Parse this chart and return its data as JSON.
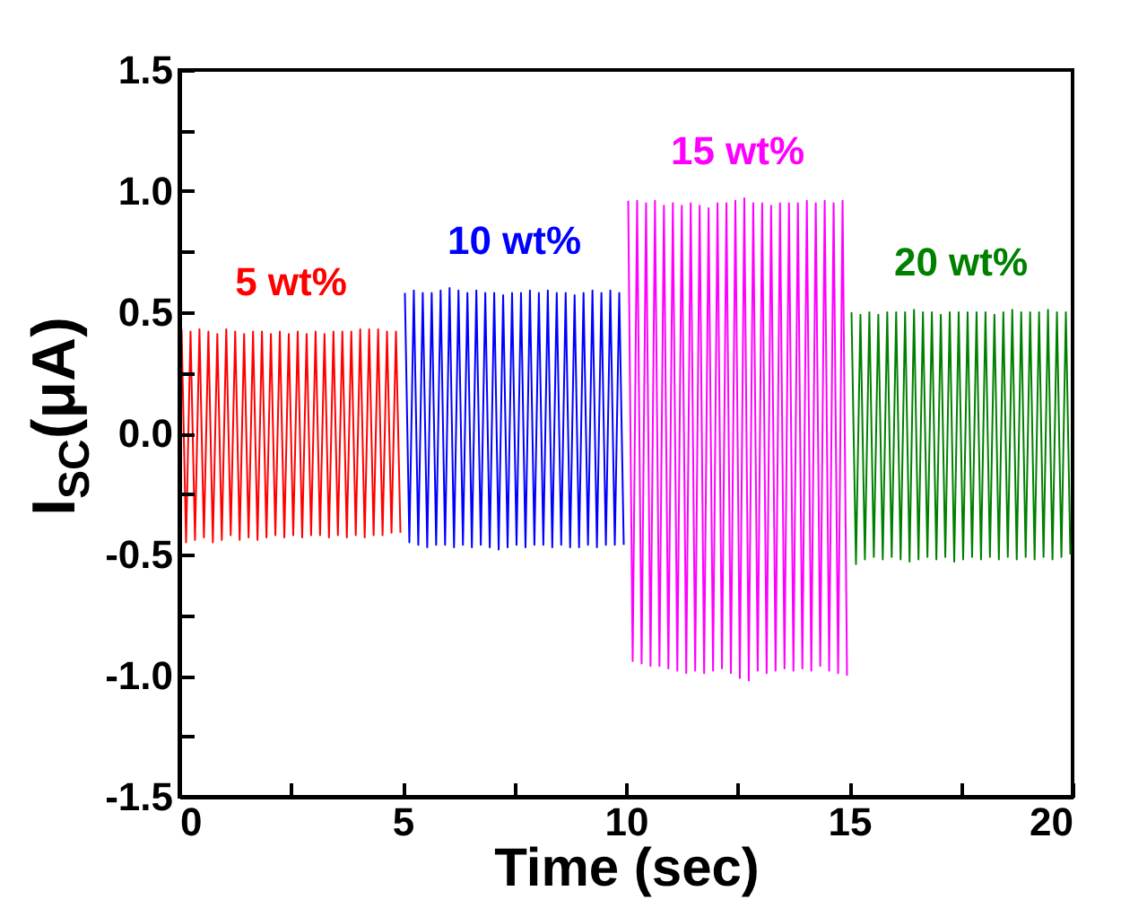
{
  "chart_data": {
    "type": "line",
    "xlabel": "Time (sec)",
    "ylabel": "I$_{SC}$(μA)",
    "xlim": [
      0,
      20
    ],
    "xticks": [
      0,
      {
        "value": 2.5,
        "label": null
      },
      5,
      {
        "value": 7.5,
        "label": null
      },
      10,
      {
        "value": 12.5,
        "label": null
      },
      15,
      {
        "value": 17.5,
        "label": null
      },
      20
    ],
    "ylim": [
      -1.5,
      1.5
    ],
    "yticks": [
      {
        "value": -1.5,
        "label": "-1.5"
      },
      {
        "value": -1.25,
        "label": null
      },
      {
        "value": -1,
        "label": "-1.0"
      },
      {
        "value": -0.75,
        "label": null
      },
      {
        "value": -0.5,
        "label": "-0.5"
      },
      {
        "value": -0.25,
        "label": null
      },
      {
        "value": 0,
        "label": "0.0"
      },
      {
        "value": 0.25,
        "label": null
      },
      {
        "value": 0.5,
        "label": "0.5"
      },
      {
        "value": 0.75,
        "label": null
      },
      {
        "value": 1,
        "label": "1.0"
      },
      {
        "value": 1.25,
        "label": null
      },
      {
        "value": 1.5,
        "label": "1.5"
      }
    ],
    "grid": false,
    "legend": false,
    "marker": "none",
    "line_style": "solid",
    "series": [
      {
        "name": "5 wt%",
        "color": "#ff0000",
        "x": [
          0.05,
          0.15,
          0.25,
          0.35,
          0.45,
          0.55,
          0.65,
          0.75,
          0.85,
          0.95,
          1.05,
          1.15,
          1.25,
          1.35,
          1.45,
          1.55,
          1.65,
          1.75,
          1.85,
          1.95,
          2.05,
          2.15,
          2.25,
          2.35,
          2.45,
          2.55,
          2.65,
          2.75,
          2.85,
          2.95,
          3.05,
          3.15,
          3.25,
          3.35,
          3.45,
          3.55,
          3.65,
          3.75,
          3.85,
          3.95,
          4.05,
          4.15,
          4.25,
          4.35,
          4.45,
          4.55,
          4.65,
          4.75,
          4.85,
          4.95
        ],
        "values": [
          0.43,
          -0.45,
          0.42,
          -0.44,
          0.43,
          -0.43,
          0.42,
          -0.45,
          0.41,
          -0.44,
          0.43,
          -0.42,
          0.42,
          -0.44,
          0.41,
          -0.43,
          0.42,
          -0.44,
          0.42,
          -0.43,
          0.41,
          -0.42,
          0.42,
          -0.43,
          0.41,
          -0.42,
          0.42,
          -0.43,
          0.41,
          -0.42,
          0.42,
          -0.42,
          0.41,
          -0.43,
          0.42,
          -0.42,
          0.42,
          -0.43,
          0.42,
          -0.42,
          0.43,
          -0.43,
          0.43,
          -0.42,
          0.43,
          -0.42,
          0.42,
          -0.41,
          0.42,
          -0.41
        ]
      },
      {
        "name": "10 wt%",
        "color": "#0000ff",
        "x": [
          5.05,
          5.15,
          5.25,
          5.35,
          5.45,
          5.55,
          5.65,
          5.75,
          5.85,
          5.95,
          6.05,
          6.15,
          6.25,
          6.35,
          6.45,
          6.55,
          6.65,
          6.75,
          6.85,
          6.95,
          7.05,
          7.15,
          7.25,
          7.35,
          7.45,
          7.55,
          7.65,
          7.75,
          7.85,
          7.95,
          8.05,
          8.15,
          8.25,
          8.35,
          8.45,
          8.55,
          8.65,
          8.75,
          8.85,
          8.95,
          9.05,
          9.15,
          9.25,
          9.35,
          9.45,
          9.55,
          9.65,
          9.75,
          9.85,
          9.95
        ],
        "values": [
          0.58,
          -0.45,
          0.59,
          -0.46,
          0.58,
          -0.47,
          0.58,
          -0.46,
          0.59,
          -0.46,
          0.6,
          -0.47,
          0.59,
          -0.46,
          0.58,
          -0.47,
          0.59,
          -0.46,
          0.58,
          -0.47,
          0.58,
          -0.48,
          0.57,
          -0.47,
          0.58,
          -0.46,
          0.58,
          -0.47,
          0.59,
          -0.46,
          0.58,
          -0.46,
          0.59,
          -0.47,
          0.58,
          -0.46,
          0.58,
          -0.47,
          0.57,
          -0.47,
          0.58,
          -0.46,
          0.59,
          -0.47,
          0.58,
          -0.46,
          0.59,
          -0.46,
          0.58,
          -0.46
        ]
      },
      {
        "name": "15 wt%",
        "color": "#ff00ff",
        "x": [
          10.05,
          10.15,
          10.25,
          10.35,
          10.45,
          10.55,
          10.65,
          10.75,
          10.85,
          10.95,
          11.05,
          11.15,
          11.25,
          11.35,
          11.45,
          11.55,
          11.65,
          11.75,
          11.85,
          11.95,
          12.05,
          12.15,
          12.25,
          12.35,
          12.45,
          12.55,
          12.65,
          12.75,
          12.85,
          12.95,
          13.05,
          13.15,
          13.25,
          13.35,
          13.45,
          13.55,
          13.65,
          13.75,
          13.85,
          13.95,
          14.05,
          14.15,
          14.25,
          14.35,
          14.45,
          14.55,
          14.65,
          14.75,
          14.85,
          14.95
        ],
        "values": [
          0.96,
          -0.94,
          0.96,
          -0.95,
          0.95,
          -0.96,
          0.96,
          -0.96,
          0.94,
          -0.97,
          0.95,
          -0.98,
          0.94,
          -0.99,
          0.95,
          -0.98,
          0.94,
          -0.99,
          0.93,
          -0.98,
          0.95,
          -0.97,
          0.95,
          -0.99,
          0.96,
          -1.01,
          0.97,
          -1.02,
          0.95,
          -0.98,
          0.95,
          -0.99,
          0.94,
          -0.98,
          0.95,
          -0.97,
          0.95,
          -0.98,
          0.95,
          -0.97,
          0.96,
          -0.98,
          0.95,
          -0.96,
          0.96,
          -0.98,
          0.95,
          -0.99,
          0.96,
          -1.0
        ]
      },
      {
        "name": "20 wt%",
        "color": "#008000",
        "x": [
          15.05,
          15.15,
          15.25,
          15.35,
          15.45,
          15.55,
          15.65,
          15.75,
          15.85,
          15.95,
          16.05,
          16.15,
          16.25,
          16.35,
          16.45,
          16.55,
          16.65,
          16.75,
          16.85,
          16.95,
          17.05,
          17.15,
          17.25,
          17.35,
          17.45,
          17.55,
          17.65,
          17.75,
          17.85,
          17.95,
          18.05,
          18.15,
          18.25,
          18.35,
          18.45,
          18.55,
          18.65,
          18.75,
          18.85,
          18.95,
          19.05,
          19.15,
          19.25,
          19.35,
          19.45,
          19.55,
          19.65,
          19.75,
          19.85,
          19.95
        ],
        "values": [
          0.5,
          -0.54,
          0.49,
          -0.52,
          0.5,
          -0.51,
          0.49,
          -0.52,
          0.5,
          -0.51,
          0.5,
          -0.52,
          0.5,
          -0.53,
          0.51,
          -0.52,
          0.5,
          -0.51,
          0.5,
          -0.52,
          0.49,
          -0.51,
          0.5,
          -0.53,
          0.5,
          -0.52,
          0.5,
          -0.51,
          0.5,
          -0.52,
          0.5,
          -0.51,
          0.49,
          -0.52,
          0.5,
          -0.51,
          0.51,
          -0.52,
          0.5,
          -0.51,
          0.5,
          -0.52,
          0.5,
          -0.51,
          0.51,
          -0.52,
          0.5,
          -0.51,
          0.5,
          -0.5
        ]
      }
    ]
  }
}
